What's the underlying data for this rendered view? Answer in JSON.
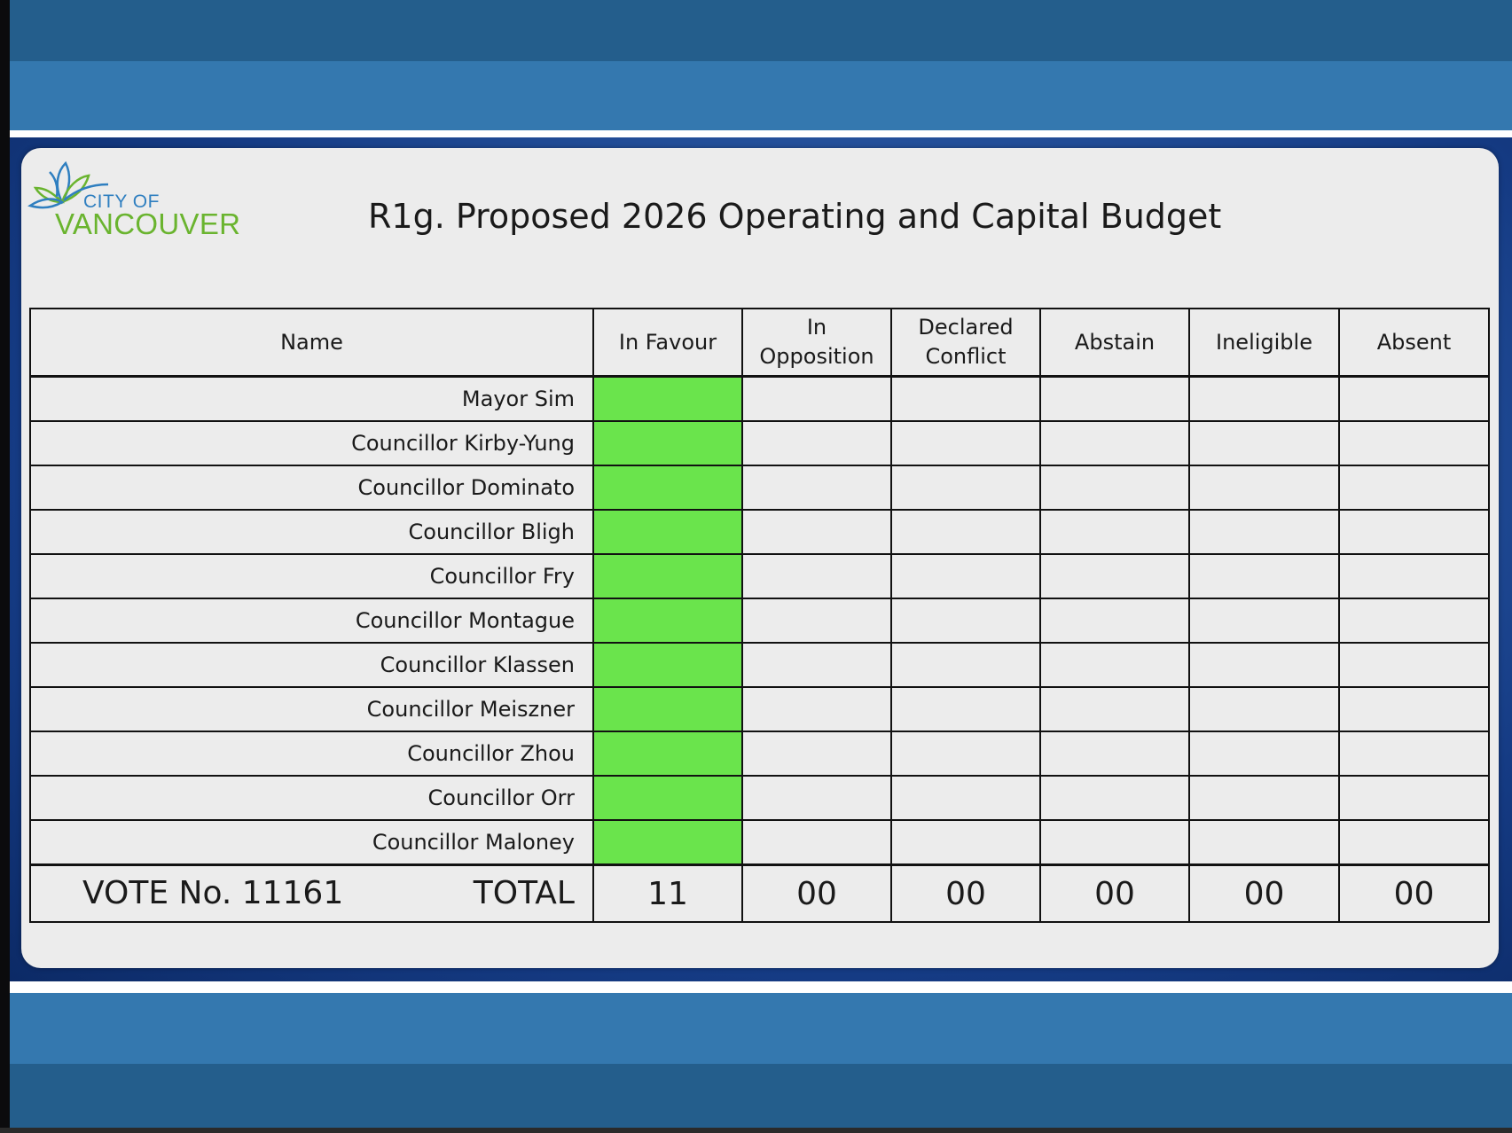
{
  "colors": {
    "vote_in_favour": "#6ae44c",
    "panel_background": "#ececec",
    "band_blue": "#3478af",
    "logo_blue": "#2f7fc0",
    "logo_green": "#6ab42f"
  },
  "logo": {
    "line1": "CITY OF",
    "line2": "VANCOUVER",
    "icon": "leaf-logo-icon"
  },
  "title": "R1g. Proposed 2026 Operating and Capital Budget",
  "table": {
    "headers": {
      "name": "Name",
      "in_favour": "In Favour",
      "in_opposition_1": "In",
      "in_opposition_2": "Opposition",
      "declared_conflict_1": "Declared",
      "declared_conflict_2": "Conflict",
      "abstain": "Abstain",
      "ineligible": "Ineligible",
      "absent": "Absent"
    },
    "members": [
      {
        "name": "Mayor Sim",
        "vote": "In Favour"
      },
      {
        "name": "Councillor Kirby-Yung",
        "vote": "In Favour"
      },
      {
        "name": "Councillor Dominato",
        "vote": "In Favour"
      },
      {
        "name": "Councillor Bligh",
        "vote": "In Favour"
      },
      {
        "name": "Councillor Fry",
        "vote": "In Favour"
      },
      {
        "name": "Councillor Montague",
        "vote": "In Favour"
      },
      {
        "name": "Councillor Klassen",
        "vote": "In Favour"
      },
      {
        "name": "Councillor Meiszner",
        "vote": "In Favour"
      },
      {
        "name": "Councillor Zhou",
        "vote": "In Favour"
      },
      {
        "name": "Councillor Orr",
        "vote": "In Favour"
      },
      {
        "name": "Councillor Maloney",
        "vote": "In Favour"
      }
    ],
    "footer": {
      "vote_number": "VOTE No. 11161",
      "total_label": "TOTAL",
      "in_favour": "11",
      "in_opposition": "00",
      "declared_conflict": "00",
      "abstain": "00",
      "ineligible": "00",
      "absent": "00"
    }
  }
}
